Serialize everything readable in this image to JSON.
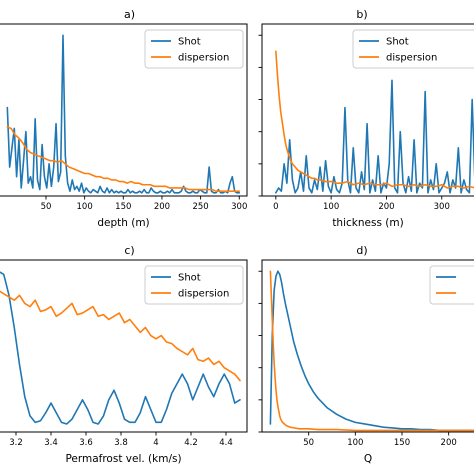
{
  "chart_data": [
    {
      "id": "a",
      "type": "line",
      "title": "a)",
      "xlabel": "depth (m)",
      "ylabel": "",
      "xlim": [
        -25,
        310
      ],
      "ylim": [
        0,
        1.07
      ],
      "xticks": [
        50,
        100,
        150,
        200,
        250,
        300
      ],
      "yticks": [],
      "grid": false,
      "legend": "top-right",
      "series": [
        {
          "name": "Shot",
          "color": "#1f77b4",
          "x": [
            0,
            3,
            6,
            9,
            12,
            15,
            18,
            21,
            24,
            27,
            30,
            33,
            36,
            39,
            42,
            45,
            48,
            51,
            54,
            57,
            60,
            63,
            66,
            69,
            72,
            75,
            78,
            81,
            84,
            87,
            90,
            93,
            96,
            99,
            102,
            105,
            108,
            111,
            114,
            117,
            120,
            123,
            126,
            129,
            132,
            135,
            138,
            141,
            144,
            147,
            150,
            153,
            156,
            159,
            162,
            165,
            168,
            171,
            174,
            177,
            180,
            183,
            186,
            189,
            192,
            195,
            198,
            201,
            204,
            207,
            210,
            213,
            216,
            219,
            222,
            225,
            228,
            231,
            234,
            237,
            240,
            243,
            246,
            249,
            252,
            255,
            258,
            261,
            264,
            267,
            270,
            273,
            276,
            279,
            282,
            285,
            288,
            291,
            294,
            297,
            300
          ],
          "y": [
            0.55,
            0.18,
            0.3,
            0.42,
            0.12,
            0.35,
            0.05,
            0.22,
            0.4,
            0.08,
            0.12,
            0.05,
            0.48,
            0.1,
            0.04,
            0.32,
            0.12,
            0.05,
            0.2,
            0.06,
            0.18,
            0.45,
            0.09,
            0.15,
            1.0,
            0.25,
            0.08,
            0.03,
            0.1,
            0.04,
            0.06,
            0.03,
            0.08,
            0.02,
            0.05,
            0.03,
            0.02,
            0.04,
            0.03,
            0.02,
            0.06,
            0.03,
            0.02,
            0.05,
            0.02,
            0.04,
            0.02,
            0.03,
            0.02,
            0.03,
            0.02,
            0.02,
            0.04,
            0.02,
            0.03,
            0.02,
            0.02,
            0.03,
            0.02,
            0.04,
            0.02,
            0.02,
            0.05,
            0.03,
            0.02,
            0.02,
            0.03,
            0.02,
            0.02,
            0.03,
            0.02,
            0.04,
            0.02,
            0.02,
            0.02,
            0.03,
            0.06,
            0.03,
            0.02,
            0.02,
            0.03,
            0.02,
            0.02,
            0.04,
            0.03,
            0.02,
            0.02,
            0.18,
            0.03,
            0.02,
            0.02,
            0.04,
            0.02,
            0.02,
            0.03,
            0.02,
            0.08,
            0.12,
            0.03,
            0.02,
            0.02
          ]
        },
        {
          "name": "dispersion",
          "color": "#ff7f0e",
          "x": [
            0,
            5,
            10,
            15,
            20,
            25,
            30,
            35,
            40,
            45,
            50,
            55,
            60,
            65,
            70,
            75,
            80,
            85,
            90,
            95,
            100,
            105,
            110,
            115,
            120,
            125,
            130,
            135,
            140,
            145,
            150,
            155,
            160,
            165,
            170,
            175,
            180,
            185,
            190,
            195,
            200,
            205,
            210,
            215,
            220,
            225,
            230,
            235,
            240,
            245,
            250,
            255,
            260,
            265,
            270,
            275,
            280,
            285,
            290,
            295,
            300
          ],
          "y": [
            0.43,
            0.42,
            0.38,
            0.36,
            0.33,
            0.29,
            0.27,
            0.26,
            0.25,
            0.24,
            0.23,
            0.22,
            0.22,
            0.21,
            0.22,
            0.2,
            0.18,
            0.17,
            0.16,
            0.15,
            0.14,
            0.14,
            0.13,
            0.12,
            0.12,
            0.11,
            0.11,
            0.1,
            0.1,
            0.09,
            0.09,
            0.08,
            0.09,
            0.08,
            0.08,
            0.07,
            0.07,
            0.07,
            0.06,
            0.06,
            0.06,
            0.06,
            0.05,
            0.05,
            0.05,
            0.05,
            0.05,
            0.04,
            0.04,
            0.04,
            0.04,
            0.04,
            0.04,
            0.04,
            0.03,
            0.03,
            0.03,
            0.03,
            0.03,
            0.03,
            0.03
          ]
        }
      ]
    },
    {
      "id": "b",
      "type": "line",
      "title": "b)",
      "xlabel": "thickness (m)",
      "ylabel": "",
      "xlim": [
        -25,
        380
      ],
      "ylim": [
        0,
        1.07
      ],
      "xticks": [
        0,
        100,
        200,
        300
      ],
      "yticks": [
        0.0,
        0.2,
        0.4,
        0.6,
        0.8,
        1.0
      ],
      "grid": false,
      "legend": "top-right",
      "series": [
        {
          "name": "Shot",
          "color": "#1f77b4",
          "x": [
            0,
            5,
            10,
            15,
            20,
            25,
            30,
            35,
            40,
            45,
            50,
            55,
            60,
            65,
            70,
            75,
            80,
            85,
            90,
            95,
            100,
            105,
            110,
            115,
            120,
            125,
            130,
            135,
            140,
            145,
            150,
            155,
            160,
            165,
            170,
            175,
            180,
            185,
            190,
            195,
            200,
            205,
            210,
            215,
            220,
            225,
            230,
            235,
            240,
            245,
            250,
            255,
            260,
            265,
            270,
            275,
            280,
            285,
            290,
            295,
            300,
            305,
            310,
            315,
            320,
            325,
            330,
            335,
            340,
            345,
            350,
            355,
            360,
            365,
            370,
            375,
            380
          ],
          "y": [
            0.02,
            0.05,
            0.03,
            0.2,
            0.08,
            0.35,
            0.1,
            0.02,
            0.05,
            0.15,
            0.03,
            0.25,
            0.05,
            0.02,
            0.1,
            0.04,
            0.18,
            0.03,
            0.22,
            0.06,
            0.02,
            0.12,
            0.04,
            0.02,
            0.08,
            0.55,
            0.1,
            0.02,
            0.3,
            0.05,
            0.02,
            0.15,
            0.04,
            0.45,
            0.02,
            0.1,
            0.03,
            0.25,
            0.02,
            0.08,
            0.05,
            0.2,
            0.72,
            0.05,
            0.02,
            0.4,
            0.08,
            0.02,
            0.12,
            0.03,
            0.35,
            0.02,
            0.08,
            0.05,
            0.65,
            0.02,
            0.1,
            0.04,
            0.2,
            0.02,
            0.05,
            0.08,
            0.15,
            0.02,
            0.1,
            0.05,
            0.3,
            0.02,
            0.1,
            0.04,
            0.02,
            0.6,
            0.08,
            0.02,
            0.15,
            0.02,
            0.05
          ]
        },
        {
          "name": "dispersion",
          "color": "#ff7f0e",
          "x": [
            0,
            3,
            6,
            9,
            12,
            15,
            18,
            21,
            24,
            27,
            30,
            35,
            40,
            45,
            50,
            55,
            60,
            65,
            70,
            75,
            80,
            90,
            100,
            110,
            120,
            130,
            140,
            150,
            160,
            170,
            180,
            190,
            200,
            210,
            220,
            230,
            240,
            250,
            260,
            270,
            280,
            290,
            300,
            310,
            320,
            330,
            340,
            350,
            360,
            370,
            380
          ],
          "y": [
            0.9,
            0.75,
            0.62,
            0.52,
            0.45,
            0.38,
            0.32,
            0.28,
            0.25,
            0.22,
            0.2,
            0.18,
            0.16,
            0.15,
            0.14,
            0.13,
            0.12,
            0.11,
            0.11,
            0.1,
            0.1,
            0.09,
            0.09,
            0.08,
            0.08,
            0.09,
            0.07,
            0.08,
            0.07,
            0.08,
            0.07,
            0.07,
            0.08,
            0.06,
            0.07,
            0.07,
            0.06,
            0.07,
            0.06,
            0.07,
            0.06,
            0.06,
            0.07,
            0.05,
            0.06,
            0.06,
            0.05,
            0.06,
            0.05,
            0.06,
            0.05
          ]
        }
      ]
    },
    {
      "id": "c",
      "type": "line",
      "title": "c)",
      "xlabel": "Permafrost vel. (km/s)",
      "ylabel": "",
      "xlim": [
        3.04,
        4.52
      ],
      "ylim": [
        0,
        1.07
      ],
      "xticks": [
        3.2,
        3.4,
        3.6,
        3.8,
        4.0,
        4.2,
        4.4
      ],
      "yticks": [],
      "grid": false,
      "legend": "top-right",
      "series": [
        {
          "name": "Shot",
          "color": "#1f77b4",
          "x": [
            3.04,
            3.07,
            3.1,
            3.13,
            3.16,
            3.19,
            3.22,
            3.25,
            3.28,
            3.31,
            3.34,
            3.37,
            3.4,
            3.43,
            3.46,
            3.49,
            3.52,
            3.55,
            3.58,
            3.61,
            3.64,
            3.67,
            3.7,
            3.73,
            3.76,
            3.79,
            3.82,
            3.85,
            3.88,
            3.91,
            3.94,
            3.97,
            4.0,
            4.03,
            4.06,
            4.09,
            4.12,
            4.15,
            4.18,
            4.21,
            4.24,
            4.27,
            4.3,
            4.33,
            4.36,
            4.39,
            4.42,
            4.45,
            4.48
          ],
          "y": [
            0.9,
            0.96,
            1.0,
            0.98,
            0.85,
            0.65,
            0.42,
            0.22,
            0.1,
            0.06,
            0.07,
            0.12,
            0.18,
            0.12,
            0.06,
            0.05,
            0.08,
            0.14,
            0.2,
            0.14,
            0.06,
            0.05,
            0.1,
            0.2,
            0.26,
            0.18,
            0.08,
            0.06,
            0.06,
            0.12,
            0.22,
            0.14,
            0.06,
            0.06,
            0.14,
            0.24,
            0.3,
            0.36,
            0.3,
            0.2,
            0.28,
            0.36,
            0.28,
            0.22,
            0.3,
            0.36,
            0.3,
            0.18,
            0.2
          ]
        },
        {
          "name": "dispersion",
          "color": "#ff7f0e",
          "x": [
            3.04,
            3.07,
            3.1,
            3.13,
            3.16,
            3.19,
            3.22,
            3.25,
            3.28,
            3.31,
            3.34,
            3.37,
            3.4,
            3.43,
            3.46,
            3.49,
            3.52,
            3.55,
            3.58,
            3.61,
            3.64,
            3.67,
            3.7,
            3.73,
            3.76,
            3.79,
            3.82,
            3.85,
            3.88,
            3.91,
            3.94,
            3.97,
            4.0,
            4.03,
            4.06,
            4.09,
            4.12,
            4.15,
            4.18,
            4.21,
            4.24,
            4.27,
            4.3,
            4.33,
            4.36,
            4.39,
            4.42,
            4.45,
            4.48
          ],
          "y": [
            0.95,
            0.9,
            0.88,
            0.86,
            0.84,
            0.82,
            0.85,
            0.8,
            0.78,
            0.82,
            0.75,
            0.76,
            0.78,
            0.72,
            0.74,
            0.77,
            0.8,
            0.73,
            0.74,
            0.76,
            0.78,
            0.72,
            0.73,
            0.7,
            0.72,
            0.74,
            0.68,
            0.7,
            0.66,
            0.62,
            0.65,
            0.6,
            0.58,
            0.6,
            0.56,
            0.55,
            0.52,
            0.5,
            0.48,
            0.52,
            0.45,
            0.44,
            0.46,
            0.42,
            0.44,
            0.4,
            0.38,
            0.36,
            0.32
          ]
        }
      ]
    },
    {
      "id": "d",
      "type": "line",
      "title": "d)",
      "xlabel": "Q",
      "ylabel": "",
      "xlim": [
        0,
        240
      ],
      "ylim": [
        0,
        1.07
      ],
      "xticks": [
        0,
        50,
        100,
        150,
        200
      ],
      "yticks": [
        0.0,
        0.2,
        0.4,
        0.6,
        0.8,
        1.0
      ],
      "grid": false,
      "legend": "top-right",
      "series": [
        {
          "name": "",
          "color": "#1f77b4",
          "x": [
            9,
            11,
            13,
            15,
            17,
            19,
            21,
            23,
            25,
            28,
            31,
            34,
            38,
            42,
            46,
            50,
            55,
            60,
            65,
            70,
            80,
            90,
            100,
            110,
            120,
            130,
            140,
            150,
            160,
            170,
            180,
            190,
            200,
            210,
            220,
            230,
            240
          ],
          "y": [
            0.05,
            0.6,
            0.88,
            0.97,
            1.0,
            0.98,
            0.93,
            0.86,
            0.8,
            0.72,
            0.64,
            0.56,
            0.48,
            0.41,
            0.35,
            0.3,
            0.25,
            0.21,
            0.18,
            0.15,
            0.11,
            0.08,
            0.06,
            0.05,
            0.04,
            0.03,
            0.025,
            0.02,
            0.02,
            0.015,
            0.015,
            0.01,
            0.01,
            0.01,
            0.01,
            0.01,
            0.01
          ]
        },
        {
          "name": "",
          "color": "#ff7f0e",
          "x": [
            9,
            10,
            11,
            12,
            13,
            14,
            15,
            16,
            17,
            18,
            19,
            20,
            22,
            24,
            26,
            28,
            30,
            35,
            40,
            50,
            60,
            80,
            100,
            150,
            200,
            240
          ],
          "y": [
            1.0,
            0.85,
            0.7,
            0.55,
            0.43,
            0.34,
            0.26,
            0.2,
            0.16,
            0.13,
            0.1,
            0.08,
            0.06,
            0.05,
            0.04,
            0.035,
            0.03,
            0.025,
            0.02,
            0.02,
            0.015,
            0.015,
            0.01,
            0.01,
            0.01,
            0.01
          ]
        }
      ]
    }
  ]
}
